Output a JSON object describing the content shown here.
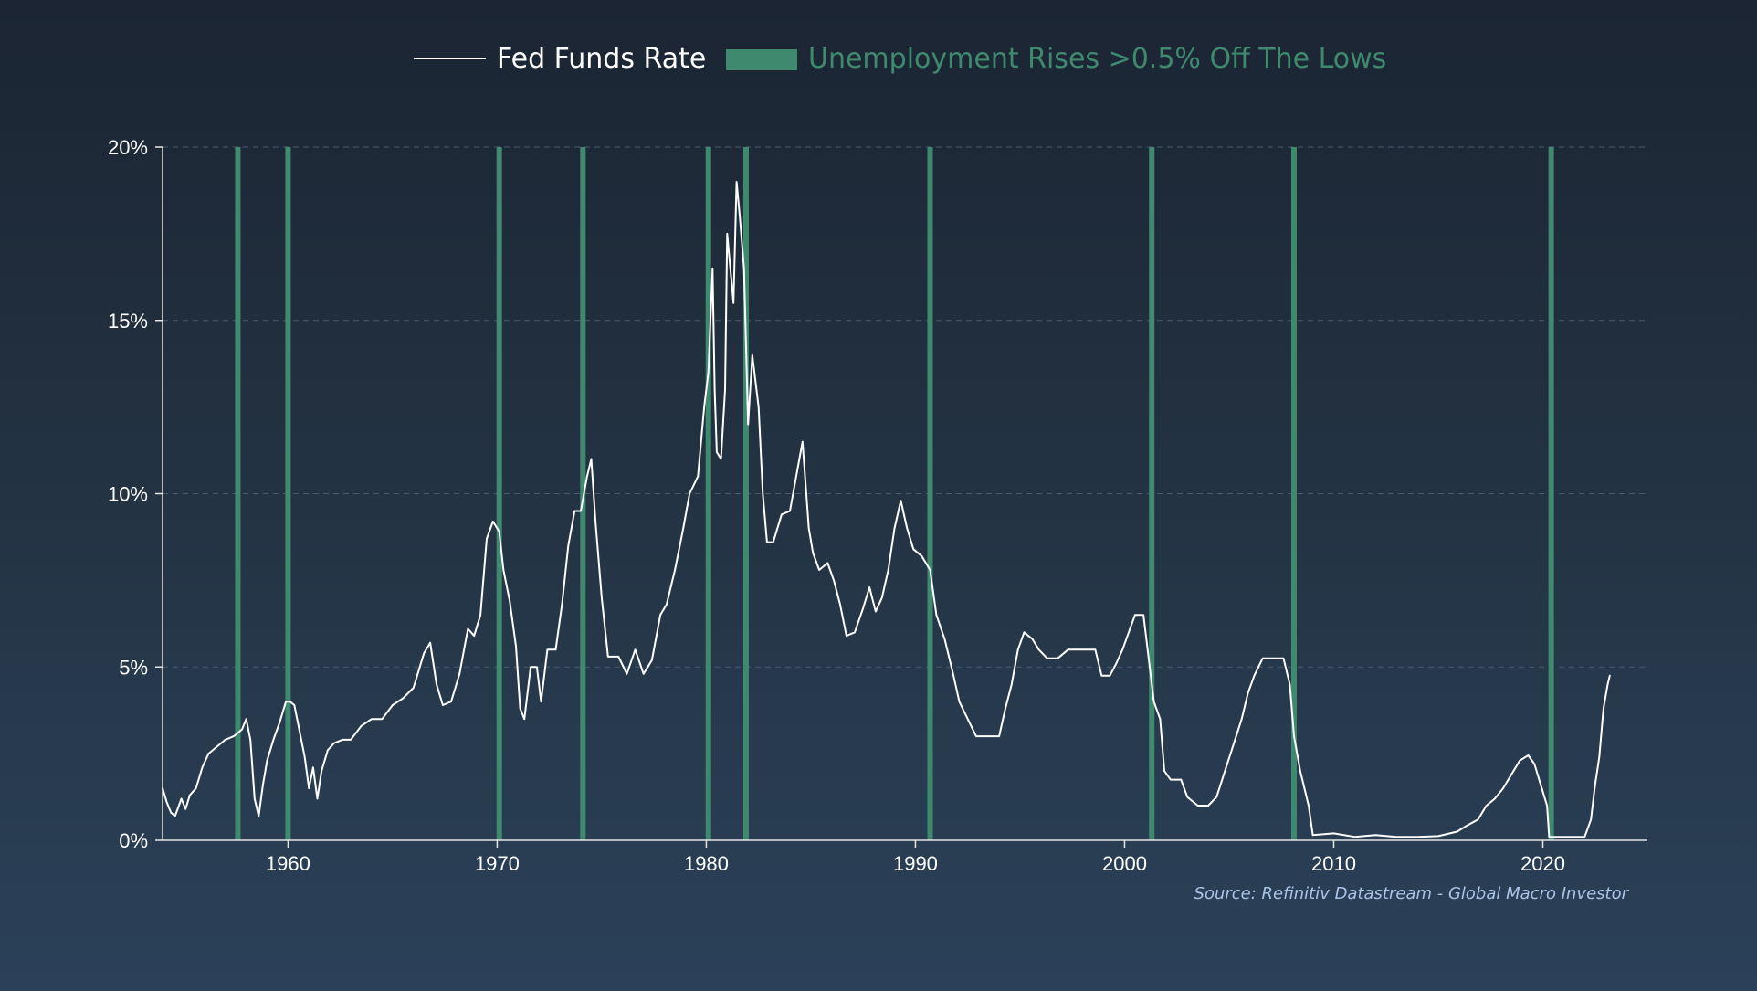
{
  "colors": {
    "line": "#ffffff",
    "band": "#3f8a6e",
    "legend_band_text": "#3f8a6e",
    "grid": "#4a5a6a",
    "axis": "#e6e6e6",
    "source_text": "#a9c4e6"
  },
  "legend": {
    "line_label": "Fed Funds Rate",
    "band_label": "Unemployment Rises >0.5% Off The Lows"
  },
  "source": "Source: Refinitiv Datastream - Global Macro Investor",
  "chart_data": {
    "type": "line",
    "title": "",
    "xlabel": "",
    "ylabel": "",
    "xlim": [
      1954,
      2025
    ],
    "ylim": [
      0,
      20
    ],
    "grid": true,
    "legend_position": "top-center",
    "x_ticks": [
      1960,
      1970,
      1980,
      1990,
      2000,
      2010,
      2020
    ],
    "y_ticks": [
      0,
      5,
      10,
      15,
      20
    ],
    "y_tick_labels": [
      "0%",
      "5%",
      "10%",
      "15%",
      "20%"
    ],
    "bands": [
      1957.6,
      1960.0,
      1970.1,
      1974.1,
      1980.1,
      1981.9,
      1990.7,
      2001.3,
      2008.1,
      2020.4
    ],
    "series": [
      {
        "name": "Fed Funds Rate",
        "points": [
          [
            1954.0,
            1.5
          ],
          [
            1954.2,
            1.1
          ],
          [
            1954.4,
            0.8
          ],
          [
            1954.6,
            0.7
          ],
          [
            1954.9,
            1.2
          ],
          [
            1955.1,
            0.9
          ],
          [
            1955.3,
            1.3
          ],
          [
            1955.6,
            1.5
          ],
          [
            1955.9,
            2.1
          ],
          [
            1956.2,
            2.5
          ],
          [
            1956.6,
            2.7
          ],
          [
            1957.0,
            2.9
          ],
          [
            1957.4,
            3.0
          ],
          [
            1957.8,
            3.2
          ],
          [
            1958.0,
            3.5
          ],
          [
            1958.2,
            2.9
          ],
          [
            1958.4,
            1.2
          ],
          [
            1958.6,
            0.7
          ],
          [
            1958.8,
            1.6
          ],
          [
            1959.0,
            2.3
          ],
          [
            1959.3,
            2.9
          ],
          [
            1959.6,
            3.4
          ],
          [
            1959.9,
            4.0
          ],
          [
            1960.1,
            4.0
          ],
          [
            1960.3,
            3.9
          ],
          [
            1960.5,
            3.3
          ],
          [
            1960.8,
            2.4
          ],
          [
            1961.0,
            1.5
          ],
          [
            1961.2,
            2.1
          ],
          [
            1961.4,
            1.2
          ],
          [
            1961.6,
            2.0
          ],
          [
            1961.9,
            2.6
          ],
          [
            1962.2,
            2.8
          ],
          [
            1962.6,
            2.9
          ],
          [
            1963.0,
            2.9
          ],
          [
            1963.5,
            3.3
          ],
          [
            1964.0,
            3.5
          ],
          [
            1964.5,
            3.5
          ],
          [
            1965.0,
            3.9
          ],
          [
            1965.5,
            4.1
          ],
          [
            1966.0,
            4.4
          ],
          [
            1966.5,
            5.4
          ],
          [
            1966.8,
            5.7
          ],
          [
            1967.1,
            4.5
          ],
          [
            1967.4,
            3.9
          ],
          [
            1967.8,
            4.0
          ],
          [
            1968.2,
            4.8
          ],
          [
            1968.6,
            6.1
          ],
          [
            1968.9,
            5.9
          ],
          [
            1969.2,
            6.5
          ],
          [
            1969.5,
            8.7
          ],
          [
            1969.8,
            9.2
          ],
          [
            1970.1,
            8.9
          ],
          [
            1970.3,
            7.8
          ],
          [
            1970.6,
            6.9
          ],
          [
            1970.9,
            5.6
          ],
          [
            1971.1,
            3.8
          ],
          [
            1971.3,
            3.5
          ],
          [
            1971.6,
            5.0
          ],
          [
            1971.9,
            5.0
          ],
          [
            1972.1,
            4.0
          ],
          [
            1972.4,
            5.5
          ],
          [
            1972.8,
            5.5
          ],
          [
            1973.1,
            6.8
          ],
          [
            1973.4,
            8.5
          ],
          [
            1973.7,
            9.5
          ],
          [
            1974.0,
            9.5
          ],
          [
            1974.3,
            10.5
          ],
          [
            1974.5,
            11.0
          ],
          [
            1974.7,
            9.2
          ],
          [
            1975.0,
            7.0
          ],
          [
            1975.3,
            5.3
          ],
          [
            1975.8,
            5.3
          ],
          [
            1976.2,
            4.8
          ],
          [
            1976.6,
            5.5
          ],
          [
            1977.0,
            4.8
          ],
          [
            1977.4,
            5.2
          ],
          [
            1977.8,
            6.5
          ],
          [
            1978.1,
            6.8
          ],
          [
            1978.5,
            7.8
          ],
          [
            1978.9,
            9.0
          ],
          [
            1979.2,
            10.0
          ],
          [
            1979.6,
            10.5
          ],
          [
            1979.9,
            12.5
          ],
          [
            1980.1,
            13.5
          ],
          [
            1980.3,
            16.5
          ],
          [
            1980.4,
            13.0
          ],
          [
            1980.5,
            11.2
          ],
          [
            1980.7,
            11.0
          ],
          [
            1980.9,
            13.0
          ],
          [
            1981.0,
            17.5
          ],
          [
            1981.3,
            15.5
          ],
          [
            1981.45,
            19.0
          ],
          [
            1981.6,
            18.0
          ],
          [
            1981.8,
            16.5
          ],
          [
            1982.0,
            12.0
          ],
          [
            1982.2,
            14.0
          ],
          [
            1982.5,
            12.5
          ],
          [
            1982.7,
            10.0
          ],
          [
            1982.9,
            8.6
          ],
          [
            1983.2,
            8.6
          ],
          [
            1983.6,
            9.4
          ],
          [
            1984.0,
            9.5
          ],
          [
            1984.3,
            10.5
          ],
          [
            1984.6,
            11.5
          ],
          [
            1984.9,
            9.0
          ],
          [
            1985.1,
            8.3
          ],
          [
            1985.4,
            7.8
          ],
          [
            1985.8,
            8.0
          ],
          [
            1986.1,
            7.5
          ],
          [
            1986.4,
            6.8
          ],
          [
            1986.7,
            5.9
          ],
          [
            1987.1,
            6.0
          ],
          [
            1987.5,
            6.7
          ],
          [
            1987.8,
            7.3
          ],
          [
            1988.1,
            6.6
          ],
          [
            1988.4,
            7.0
          ],
          [
            1988.7,
            7.8
          ],
          [
            1989.0,
            9.0
          ],
          [
            1989.3,
            9.8
          ],
          [
            1989.6,
            9.0
          ],
          [
            1989.9,
            8.4
          ],
          [
            1990.3,
            8.2
          ],
          [
            1990.7,
            7.8
          ],
          [
            1991.0,
            6.5
          ],
          [
            1991.4,
            5.8
          ],
          [
            1991.8,
            4.8
          ],
          [
            1992.1,
            4.0
          ],
          [
            1992.5,
            3.5
          ],
          [
            1992.9,
            3.0
          ],
          [
            1993.5,
            3.0
          ],
          [
            1994.0,
            3.0
          ],
          [
            1994.3,
            3.8
          ],
          [
            1994.6,
            4.5
          ],
          [
            1994.9,
            5.5
          ],
          [
            1995.2,
            6.0
          ],
          [
            1995.6,
            5.8
          ],
          [
            1995.9,
            5.5
          ],
          [
            1996.3,
            5.25
          ],
          [
            1996.8,
            5.25
          ],
          [
            1997.3,
            5.5
          ],
          [
            1997.8,
            5.5
          ],
          [
            1998.2,
            5.5
          ],
          [
            1998.6,
            5.5
          ],
          [
            1998.9,
            4.75
          ],
          [
            1999.3,
            4.75
          ],
          [
            1999.6,
            5.1
          ],
          [
            1999.9,
            5.5
          ],
          [
            2000.2,
            6.0
          ],
          [
            2000.5,
            6.5
          ],
          [
            2000.9,
            6.5
          ],
          [
            2001.1,
            5.5
          ],
          [
            2001.4,
            4.0
          ],
          [
            2001.7,
            3.5
          ],
          [
            2001.9,
            2.0
          ],
          [
            2002.2,
            1.75
          ],
          [
            2002.7,
            1.75
          ],
          [
            2003.0,
            1.25
          ],
          [
            2003.5,
            1.0
          ],
          [
            2004.0,
            1.0
          ],
          [
            2004.4,
            1.25
          ],
          [
            2004.8,
            2.0
          ],
          [
            2005.2,
            2.75
          ],
          [
            2005.6,
            3.5
          ],
          [
            2005.9,
            4.25
          ],
          [
            2006.2,
            4.75
          ],
          [
            2006.6,
            5.25
          ],
          [
            2007.0,
            5.25
          ],
          [
            2007.6,
            5.25
          ],
          [
            2007.9,
            4.5
          ],
          [
            2008.1,
            3.0
          ],
          [
            2008.4,
            2.0
          ],
          [
            2008.8,
            1.0
          ],
          [
            2009.0,
            0.15
          ],
          [
            2010.0,
            0.2
          ],
          [
            2011.0,
            0.1
          ],
          [
            2012.0,
            0.15
          ],
          [
            2013.0,
            0.1
          ],
          [
            2014.0,
            0.1
          ],
          [
            2015.0,
            0.12
          ],
          [
            2015.9,
            0.25
          ],
          [
            2016.3,
            0.4
          ],
          [
            2016.9,
            0.6
          ],
          [
            2017.3,
            1.0
          ],
          [
            2017.7,
            1.2
          ],
          [
            2018.1,
            1.5
          ],
          [
            2018.5,
            1.9
          ],
          [
            2018.9,
            2.3
          ],
          [
            2019.3,
            2.45
          ],
          [
            2019.6,
            2.2
          ],
          [
            2019.9,
            1.6
          ],
          [
            2020.2,
            1.0
          ],
          [
            2020.3,
            0.1
          ],
          [
            2021.0,
            0.1
          ],
          [
            2022.0,
            0.1
          ],
          [
            2022.3,
            0.6
          ],
          [
            2022.5,
            1.6
          ],
          [
            2022.7,
            2.4
          ],
          [
            2022.9,
            3.8
          ],
          [
            2023.1,
            4.5
          ],
          [
            2023.2,
            4.75
          ]
        ]
      }
    ]
  }
}
